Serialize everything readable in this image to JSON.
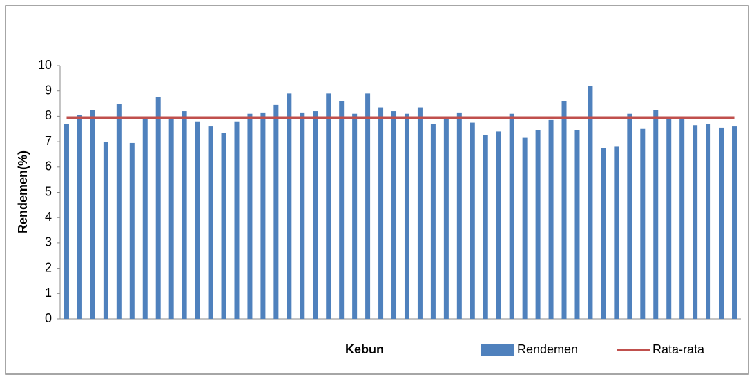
{
  "chart_data": {
    "type": "bar",
    "y_label": "Rendemen(%)",
    "x_label": "Kebun",
    "categories": [
      null,
      null,
      null,
      null,
      null,
      null,
      null,
      null,
      null,
      null,
      null,
      null,
      null,
      null,
      null,
      null,
      null,
      null,
      null,
      null,
      null,
      null,
      null,
      null,
      null,
      null,
      null,
      null,
      null,
      null,
      null,
      null,
      null,
      null,
      null,
      null,
      null,
      null,
      null,
      null,
      null,
      null,
      null,
      null,
      null,
      null,
      null,
      null,
      null,
      null,
      null,
      null
    ],
    "series": [
      {
        "name": "Rendemen",
        "type": "bar",
        "color": "#4f81bd",
        "values": [
          7.7,
          8.05,
          8.25,
          7.0,
          8.5,
          6.95,
          7.95,
          8.75,
          7.95,
          8.2,
          7.8,
          7.6,
          7.35,
          7.8,
          8.1,
          8.15,
          8.45,
          8.9,
          8.15,
          8.2,
          8.9,
          8.6,
          8.1,
          8.9,
          8.35,
          8.2,
          8.1,
          8.35,
          7.7,
          7.95,
          8.15,
          7.75,
          7.25,
          7.4,
          8.1,
          7.15,
          7.45,
          7.85,
          8.6,
          7.45,
          9.2,
          6.75,
          6.8,
          8.1,
          7.5,
          8.25,
          7.95,
          7.95,
          7.65,
          7.7,
          7.55,
          7.6
        ]
      },
      {
        "name": "Rata-rata",
        "type": "line",
        "color": "#c0504d",
        "values": [
          7.95,
          7.95,
          7.95,
          7.95,
          7.95,
          7.95,
          7.95,
          7.95,
          7.95,
          7.95,
          7.95,
          7.95,
          7.95,
          7.95,
          7.95,
          7.95,
          7.95,
          7.95,
          7.95,
          7.95,
          7.95,
          7.95,
          7.95,
          7.95,
          7.95,
          7.95,
          7.95,
          7.95,
          7.95,
          7.95,
          7.95,
          7.95,
          7.95,
          7.95,
          7.95,
          7.95,
          7.95,
          7.95,
          7.95,
          7.95,
          7.95,
          7.95,
          7.95,
          7.95,
          7.95,
          7.95,
          7.95,
          7.95,
          7.95,
          7.95,
          7.95,
          7.95
        ]
      }
    ],
    "ylim": [
      0,
      10
    ],
    "yticks": [
      0,
      1,
      2,
      3,
      4,
      5,
      6,
      7,
      8,
      9,
      10
    ],
    "grid": false,
    "legend": "bottom"
  }
}
